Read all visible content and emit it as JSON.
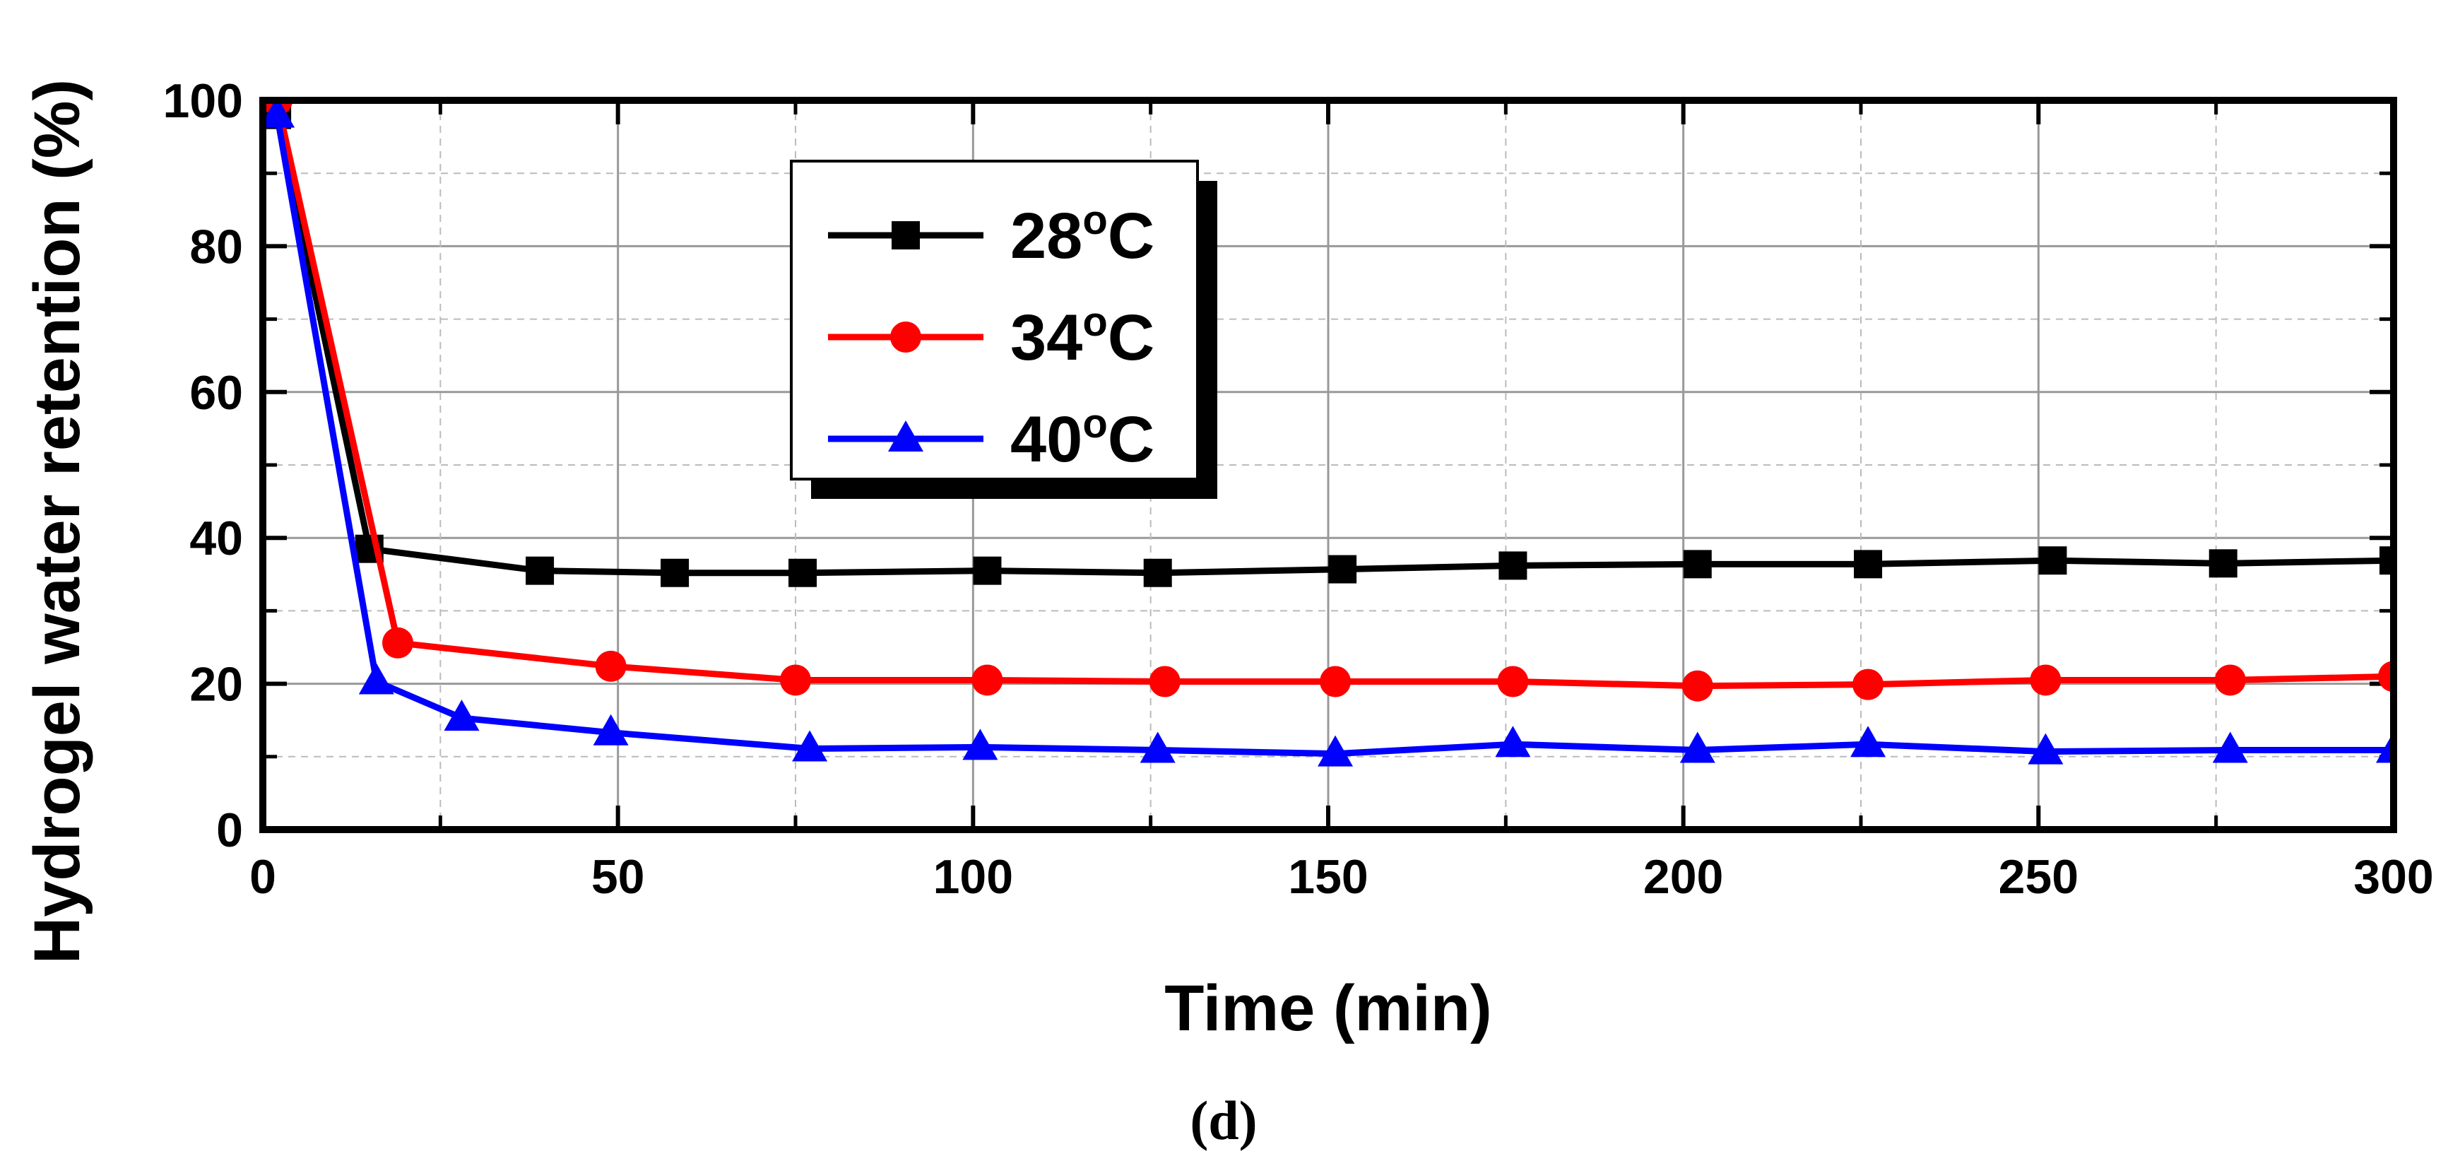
{
  "chart_data": {
    "type": "line",
    "xlabel": "Time (min)",
    "ylabel": "Hydrogel water retention (%)",
    "caption": "(d)",
    "xlim": [
      0,
      300
    ],
    "ylim": [
      0,
      100
    ],
    "xticks": [
      0,
      50,
      100,
      150,
      200,
      250,
      300
    ],
    "yticks": [
      0,
      20,
      40,
      60,
      80,
      100
    ],
    "x_minor_ticks": [
      25,
      75,
      125,
      175,
      225,
      275
    ],
    "y_minor_ticks": [
      10,
      30,
      50,
      70,
      90
    ],
    "grid": true,
    "legend_position": "upper-center",
    "series": [
      {
        "name": "28",
        "unit": "oC",
        "color": "#000000",
        "marker": "square",
        "x": [
          2,
          15,
          39,
          58,
          76,
          102,
          126,
          152,
          176,
          202,
          226,
          252,
          276,
          300
        ],
        "y": [
          98,
          38.5,
          35.5,
          35.2,
          35.2,
          35.5,
          35.2,
          35.7,
          36.2,
          36.4,
          36.4,
          36.9,
          36.5,
          36.9
        ]
      },
      {
        "name": "34",
        "unit": "oC",
        "color": "#ff0000",
        "marker": "circle",
        "x": [
          2,
          19,
          49,
          75,
          102,
          127,
          151,
          176,
          202,
          226,
          251,
          277,
          300
        ],
        "y": [
          100,
          25.6,
          22.4,
          20.5,
          20.5,
          20.3,
          20.3,
          20.3,
          19.7,
          19.9,
          20.5,
          20.5,
          21
        ]
      },
      {
        "name": "40",
        "unit": "oC",
        "color": "#0000ff",
        "marker": "triangle",
        "x": [
          2,
          16,
          28,
          49,
          77,
          101,
          126,
          151,
          176,
          202,
          226,
          251,
          277,
          300
        ],
        "y": [
          98,
          20.3,
          15.3,
          13.3,
          11.1,
          11.3,
          10.9,
          10.4,
          11.7,
          10.9,
          11.7,
          10.7,
          10.9,
          10.9
        ]
      }
    ]
  }
}
